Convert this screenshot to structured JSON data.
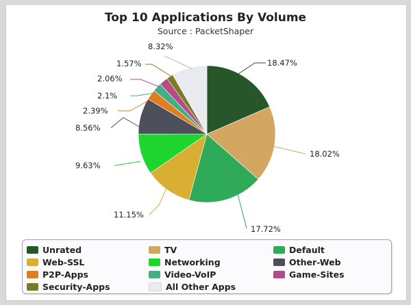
{
  "chart_data": {
    "type": "pie",
    "title": "Top 10 Applications By Volume",
    "subtitle": "Source : PacketShaper",
    "slices": [
      {
        "name": "Unrated",
        "value": 18.47,
        "label": "18.47%",
        "color": "#27562a"
      },
      {
        "name": "TV",
        "value": 18.02,
        "label": "18.02%",
        "color": "#d3a762"
      },
      {
        "name": "Default",
        "value": 17.72,
        "label": "17.72%",
        "color": "#2eaa58"
      },
      {
        "name": "Web-SSL",
        "value": 11.15,
        "label": "11.15%",
        "color": "#d8ae33"
      },
      {
        "name": "Networking",
        "value": 9.63,
        "label": "9.63%",
        "color": "#1ed52d"
      },
      {
        "name": "Other-Web",
        "value": 8.56,
        "label": "8.56%",
        "color": "#4d4f5b"
      },
      {
        "name": "P2P-Apps",
        "value": 2.39,
        "label": "2.39%",
        "color": "#e07d1e"
      },
      {
        "name": "Video-VoIP",
        "value": 2.1,
        "label": "2.1%",
        "color": "#45ae86"
      },
      {
        "name": "Game-Sites",
        "value": 2.06,
        "label": "2.06%",
        "color": "#b34b86"
      },
      {
        "name": "Security-Apps",
        "value": 1.57,
        "label": "1.57%",
        "color": "#7d7a23"
      },
      {
        "name": "All Other Apps",
        "value": 8.32,
        "label": "8.32%",
        "color": "#e9ebf1"
      }
    ],
    "legend_placement": "bottom",
    "legend_columns": 3
  }
}
